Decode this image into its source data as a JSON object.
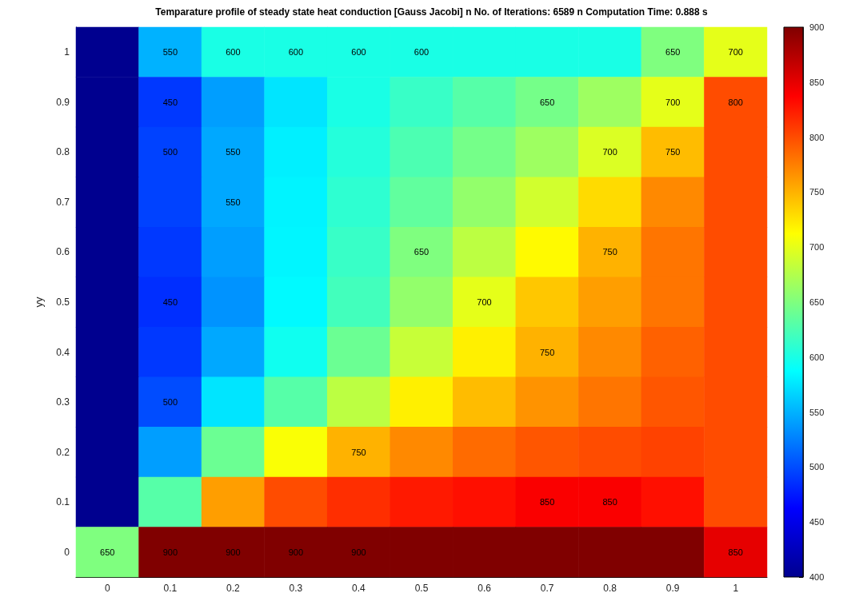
{
  "chart_data": {
    "type": "heatmap",
    "title": "Temparature profile of steady state heat conduction [Gauss Jacobi] n No. of Iterations: 6589 n Computation Time: 0.888 s",
    "ylabel": "yy",
    "categories": [
      "0",
      "0.1",
      "0.2",
      "0.3",
      "0.4",
      "0.5",
      "0.6",
      "0.7",
      "0.8",
      "0.9",
      "1"
    ],
    "y_categories": [
      "1",
      "0.9",
      "0.8",
      "0.7",
      "0.6",
      "0.5",
      "0.4",
      "0.3",
      "0.2",
      "0.1",
      "0"
    ],
    "cells": [
      [
        400,
        550,
        600,
        600,
        600,
        600,
        600,
        600,
        600,
        650,
        700
      ],
      [
        400,
        490,
        540,
        575,
        600,
        615,
        630,
        645,
        665,
        700,
        800
      ],
      [
        400,
        495,
        545,
        580,
        605,
        625,
        645,
        665,
        695,
        745,
        800
      ],
      [
        400,
        495,
        545,
        582,
        610,
        635,
        660,
        690,
        730,
        770,
        800
      ],
      [
        400,
        490,
        540,
        583,
        615,
        650,
        680,
        715,
        750,
        780,
        800
      ],
      [
        400,
        485,
        535,
        585,
        620,
        660,
        700,
        740,
        760,
        780,
        800
      ],
      [
        400,
        490,
        545,
        595,
        640,
        685,
        720,
        750,
        770,
        790,
        800
      ],
      [
        400,
        500,
        575,
        630,
        680,
        720,
        745,
        765,
        780,
        795,
        800
      ],
      [
        400,
        540,
        640,
        710,
        750,
        770,
        785,
        795,
        800,
        805,
        800
      ],
      [
        400,
        630,
        760,
        800,
        815,
        825,
        830,
        840,
        840,
        830,
        800
      ],
      [
        650,
        900,
        900,
        900,
        900,
        900,
        900,
        900,
        900,
        900,
        850
      ]
    ],
    "clim": [
      400,
      900
    ],
    "cticks": [
      400,
      450,
      500,
      550,
      600,
      650,
      700,
      750,
      800,
      850,
      900
    ],
    "grid": false,
    "annotations": [
      "600",
      "550",
      "600",
      "650",
      "700",
      "750",
      "650",
      "700",
      "750",
      "450",
      "500",
      "550",
      "600",
      "650",
      "450",
      "500",
      "550",
      "600",
      "650",
      "700",
      "750",
      "700",
      "750",
      "800",
      "850",
      "850",
      "850",
      "900",
      "900",
      "900",
      "900"
    ]
  }
}
